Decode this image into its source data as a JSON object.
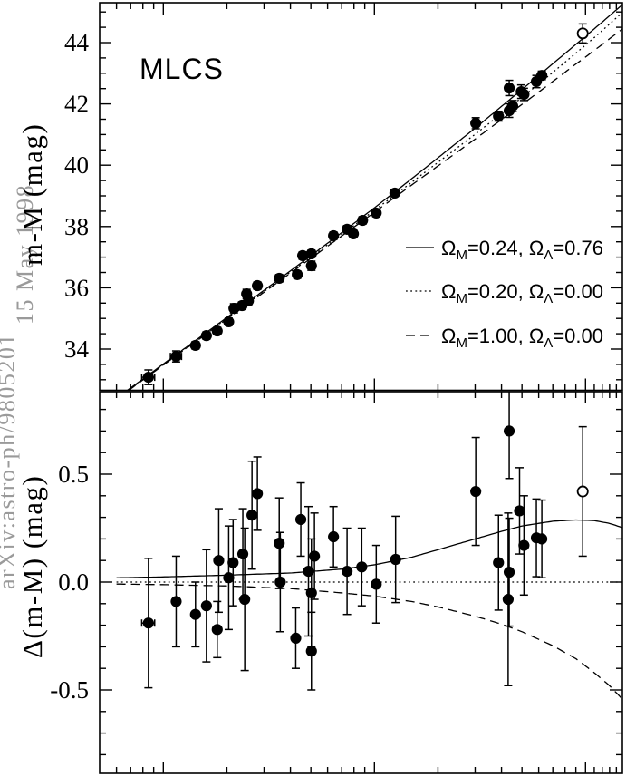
{
  "watermark": {
    "id": "arXiv:astro-ph/9805201",
    "date": "15 May 1998",
    "color": "#9a9a9a"
  },
  "chart_data": {
    "type": "scatter",
    "title": "MLCS",
    "x_axis": {
      "scale": "log",
      "min": 0.005,
      "max": 1.52,
      "decades": [
        0.01,
        0.1,
        1.0
      ],
      "label": ""
    },
    "top_panel": {
      "ylabel": "m-M (mag)",
      "ylim": [
        32.7,
        45.3
      ],
      "yticks": [
        {
          "label": "44",
          "value": 44
        },
        {
          "label": "42",
          "value": 42
        },
        {
          "label": "40",
          "value": 40
        },
        {
          "label": "38",
          "value": 38
        },
        {
          "label": "36",
          "value": 36
        },
        {
          "label": "34",
          "value": 34
        }
      ],
      "points": [
        {
          "z": 0.0085,
          "m": 33.08,
          "err": 0.24,
          "xerr": 0.0006
        },
        {
          "z": 0.0115,
          "m": 33.76,
          "err": 0.18,
          "xerr": 0.0007
        },
        {
          "z": 0.0142,
          "m": 34.12,
          "err": 0.12
        },
        {
          "z": 0.016,
          "m": 34.44,
          "err": 0.12
        },
        {
          "z": 0.018,
          "m": 34.59,
          "err": 0.12
        },
        {
          "z": 0.0204,
          "m": 34.89,
          "err": 0.12
        },
        {
          "z": 0.0216,
          "m": 35.33,
          "err": 0.15
        },
        {
          "z": 0.0236,
          "m": 35.42,
          "err": 0.12
        },
        {
          "z": 0.0253,
          "m": 35.57,
          "err": 0.12
        },
        {
          "z": 0.0248,
          "m": 35.8,
          "err": 0.15
        },
        {
          "z": 0.0279,
          "m": 36.07,
          "err": 0.12
        },
        {
          "z": 0.0354,
          "m": 36.31,
          "err": 0.12
        },
        {
          "z": 0.0431,
          "m": 36.43,
          "err": 0.12
        },
        {
          "z": 0.0457,
          "m": 37.05,
          "err": 0.12
        },
        {
          "z": 0.0503,
          "m": 37.11,
          "err": 0.12
        },
        {
          "z": 0.0503,
          "m": 36.72,
          "err": 0.15
        },
        {
          "z": 0.064,
          "m": 37.7,
          "err": 0.12
        },
        {
          "z": 0.0742,
          "m": 37.91,
          "err": 0.12
        },
        {
          "z": 0.0795,
          "m": 37.76,
          "err": 0.12
        },
        {
          "z": 0.0879,
          "m": 38.2,
          "err": 0.12
        },
        {
          "z": 0.102,
          "m": 38.44,
          "err": 0.12
        },
        {
          "z": 0.125,
          "m": 39.09,
          "err": 0.1
        },
        {
          "z": 0.302,
          "m": 41.37,
          "err": 0.18
        },
        {
          "z": 0.387,
          "m": 41.6,
          "err": 0.16
        },
        {
          "z": 0.435,
          "m": 41.78,
          "err": 0.22
        },
        {
          "z": 0.452,
          "m": 41.93,
          "err": 0.18
        },
        {
          "z": 0.435,
          "m": 42.52,
          "err": 0.25
        },
        {
          "z": 0.496,
          "m": 42.4,
          "err": 0.22
        },
        {
          "z": 0.511,
          "m": 42.31,
          "err": 0.2
        },
        {
          "z": 0.585,
          "m": 42.73,
          "err": 0.2
        },
        {
          "z": 0.621,
          "m": 42.93,
          "err": 0.14
        },
        {
          "z": 0.97,
          "m": 44.3,
          "err": 0.31,
          "open": true
        }
      ]
    },
    "bottom_panel": {
      "ylabel": "Δ(m-M) (mag)",
      "ylim": [
        -0.89,
        0.88
      ],
      "yticks": [
        {
          "label": "0.5",
          "value": 0.5
        },
        {
          "label": "0.0",
          "value": 0.0
        },
        {
          "label": "-0.5",
          "value": -0.5
        }
      ],
      "points": [
        {
          "z": 0.0085,
          "d": -0.19,
          "err": 0.3,
          "xerr": 0.0006
        },
        {
          "z": 0.0115,
          "d": -0.09,
          "err": 0.21
        },
        {
          "z": 0.0142,
          "d": -0.15,
          "err": 0.15
        },
        {
          "z": 0.016,
          "d": -0.11,
          "err": 0.26
        },
        {
          "z": 0.018,
          "d": -0.22,
          "err": 0.13
        },
        {
          "z": 0.0183,
          "d": 0.1,
          "err": 0.24
        },
        {
          "z": 0.0204,
          "d": 0.02,
          "err": 0.24
        },
        {
          "z": 0.0214,
          "d": 0.09,
          "err": 0.2
        },
        {
          "z": 0.0238,
          "d": 0.13,
          "err": 0.21
        },
        {
          "z": 0.0243,
          "d": -0.08,
          "err": 0.33
        },
        {
          "z": 0.0263,
          "d": 0.31,
          "err": 0.25
        },
        {
          "z": 0.0279,
          "d": 0.41,
          "err": 0.17
        },
        {
          "z": 0.0354,
          "d": 0.18,
          "err": 0.21
        },
        {
          "z": 0.0358,
          "d": 0.0,
          "err": 0.23
        },
        {
          "z": 0.0424,
          "d": -0.26,
          "err": 0.14
        },
        {
          "z": 0.0448,
          "d": 0.29,
          "err": 0.17
        },
        {
          "z": 0.0487,
          "d": 0.05,
          "err": 0.3
        },
        {
          "z": 0.0503,
          "d": -0.05,
          "err": 0.25
        },
        {
          "z": 0.0503,
          "d": -0.32,
          "err": 0.18
        },
        {
          "z": 0.052,
          "d": 0.12,
          "err": 0.2
        },
        {
          "z": 0.064,
          "d": 0.21,
          "err": 0.14
        },
        {
          "z": 0.0742,
          "d": 0.05,
          "err": 0.2
        },
        {
          "z": 0.0871,
          "d": 0.07,
          "err": 0.18
        },
        {
          "z": 0.102,
          "d": -0.01,
          "err": 0.18
        },
        {
          "z": 0.126,
          "d": 0.105,
          "err": 0.2
        },
        {
          "z": 0.302,
          "d": 0.42,
          "err": 0.25
        },
        {
          "z": 0.387,
          "d": 0.09,
          "err": 0.22
        },
        {
          "z": 0.435,
          "d": 0.7,
          "err": 0.22
        },
        {
          "z": 0.435,
          "d": 0.046,
          "err": 0.25
        },
        {
          "z": 0.43,
          "d": -0.08,
          "err": 0.4
        },
        {
          "z": 0.487,
          "d": 0.33,
          "err": 0.2
        },
        {
          "z": 0.511,
          "d": 0.17,
          "err": 0.23
        },
        {
          "z": 0.585,
          "d": 0.205,
          "err": 0.18
        },
        {
          "z": 0.621,
          "d": 0.2,
          "err": 0.18
        },
        {
          "z": 0.97,
          "d": 0.42,
          "err": 0.3,
          "open": true
        }
      ]
    },
    "models": [
      {
        "label": "Ω_M=0.24, Ω_Λ=0.76",
        "omega_m": "0.24",
        "omega_lambda": "0.76",
        "style": "solid",
        "delta": [
          [
            0.005,
            0.018
          ],
          [
            0.01,
            0.024
          ],
          [
            0.02,
            0.032
          ],
          [
            0.04,
            0.042
          ],
          [
            0.07,
            0.06
          ],
          [
            0.1,
            0.08
          ],
          [
            0.15,
            0.115
          ],
          [
            0.2,
            0.15
          ],
          [
            0.3,
            0.2
          ],
          [
            0.4,
            0.235
          ],
          [
            0.5,
            0.26
          ],
          [
            0.7,
            0.282
          ],
          [
            0.9,
            0.288
          ],
          [
            1.1,
            0.285
          ],
          [
            1.3,
            0.272
          ],
          [
            1.52,
            0.25
          ]
        ]
      },
      {
        "label": "Ω_M=0.20, Ω_Λ=0.00",
        "omega_m": "0.20",
        "omega_lambda": "0.00",
        "style": "dotted",
        "delta": [
          [
            0.005,
            0.0
          ],
          [
            1.52,
            0.0
          ]
        ]
      },
      {
        "label": "Ω_M=1.00, Ω_Λ=0.00",
        "omega_m": "1.00",
        "omega_lambda": "0.00",
        "style": "dashed",
        "delta": [
          [
            0.005,
            -0.008
          ],
          [
            0.01,
            -0.012
          ],
          [
            0.02,
            -0.018
          ],
          [
            0.04,
            -0.03
          ],
          [
            0.07,
            -0.05
          ],
          [
            0.1,
            -0.065
          ],
          [
            0.15,
            -0.09
          ],
          [
            0.2,
            -0.115
          ],
          [
            0.3,
            -0.158
          ],
          [
            0.4,
            -0.195
          ],
          [
            0.5,
            -0.23
          ],
          [
            0.7,
            -0.295
          ],
          [
            0.9,
            -0.355
          ],
          [
            1.1,
            -0.42
          ],
          [
            1.3,
            -0.48
          ],
          [
            1.52,
            -0.55
          ]
        ]
      }
    ],
    "base_mu": [
      [
        0.006,
        32.38
      ],
      [
        0.008,
        33.0
      ],
      [
        0.01,
        33.49
      ],
      [
        0.015,
        34.37
      ],
      [
        0.02,
        35.0
      ],
      [
        0.03,
        35.88
      ],
      [
        0.05,
        37.0
      ],
      [
        0.07,
        37.74
      ],
      [
        0.1,
        38.53
      ],
      [
        0.15,
        39.44
      ],
      [
        0.2,
        40.09
      ],
      [
        0.3,
        41.01
      ],
      [
        0.45,
        41.96
      ],
      [
        0.6,
        42.65
      ],
      [
        0.8,
        43.36
      ],
      [
        1.0,
        43.92
      ],
      [
        1.2,
        44.39
      ],
      [
        1.52,
        45.03
      ]
    ],
    "legend_position": "bottom-right-of-top-panel",
    "grid": false,
    "colors": {
      "ink": "#000000",
      "background": "#ffffff"
    }
  }
}
